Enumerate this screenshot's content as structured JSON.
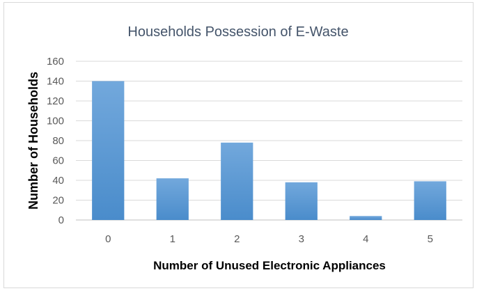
{
  "chart_data": {
    "type": "bar",
    "title": "Households Possession of E-Waste",
    "xlabel": "Number of Unused Electronic Appliances",
    "ylabel": "Number of Households",
    "categories": [
      "0",
      "1",
      "2",
      "3",
      "4",
      "5"
    ],
    "values": [
      140,
      42,
      78,
      38,
      4,
      39
    ],
    "ylim": [
      0,
      160
    ],
    "yticks": [
      0,
      20,
      40,
      60,
      80,
      100,
      120,
      140,
      160
    ],
    "grid": true,
    "legend": "none",
    "colors": {
      "bar": "#5b9bd5",
      "bar_light": "#72a8dc",
      "bar_dark": "#4a8ccb",
      "title": "#44546a",
      "gridline": "#d9d9d9"
    }
  }
}
